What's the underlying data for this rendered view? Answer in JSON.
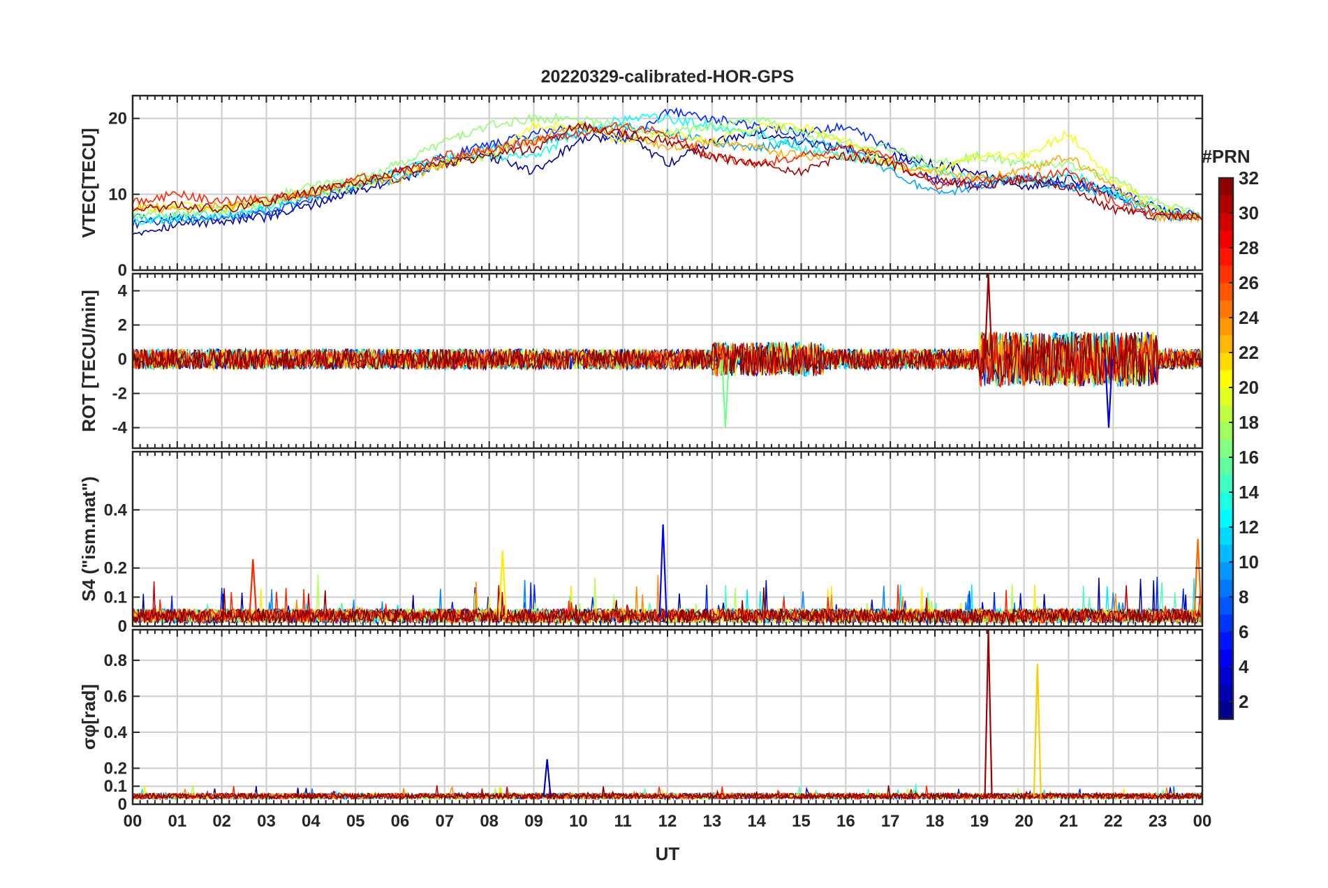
{
  "chart_data": {
    "type": "line",
    "title": "20220329-calibrated-HOR-GPS",
    "xlabel": "UT",
    "x_ticks": [
      "00",
      "01",
      "02",
      "03",
      "04",
      "05",
      "06",
      "07",
      "08",
      "09",
      "10",
      "11",
      "12",
      "13",
      "14",
      "15",
      "16",
      "17",
      "18",
      "19",
      "20",
      "21",
      "22",
      "23",
      "00"
    ],
    "xlim_hours": [
      0,
      24
    ],
    "colorbar": {
      "title": "#PRN",
      "range": [
        1,
        32
      ],
      "ticks": [
        2,
        4,
        6,
        8,
        10,
        12,
        14,
        16,
        18,
        20,
        22,
        24,
        26,
        28,
        30,
        32
      ],
      "colormap": "jet"
    },
    "panels": [
      {
        "name": "vtec",
        "ylabel": "VTEC[TECU]",
        "ylim": [
          0,
          23
        ],
        "yticks": [
          0,
          10,
          20
        ],
        "ytick_labels": [
          "0",
          "10",
          "20"
        ],
        "series": [
          {
            "prn": 2,
            "x": [
              0,
              1,
              2,
              3,
              4,
              5,
              6,
              7,
              8,
              9,
              10,
              11,
              12,
              13,
              14,
              15,
              16,
              17,
              18,
              19,
              20,
              21,
              22,
              23,
              24
            ],
            "y": [
              5,
              6,
              6.5,
              7,
              8.5,
              10.5,
              12,
              14,
              15,
              13,
              17,
              18,
              14,
              17,
              18,
              17,
              16,
              15,
              14,
              13,
              11,
              12,
              10,
              8,
              7
            ]
          },
          {
            "prn": 6,
            "x": [
              0,
              1,
              2,
              3,
              4,
              5,
              6,
              7,
              8,
              9,
              10,
              11,
              12,
              13,
              14,
              15,
              16,
              17,
              18,
              19,
              20,
              21,
              22,
              23,
              24
            ],
            "y": [
              6,
              7,
              7,
              7.5,
              9,
              11,
              13,
              15,
              16.5,
              18,
              19,
              17,
              21,
              20,
              19,
              18,
              19,
              16,
              12,
              11,
              12,
              11,
              11,
              8,
              7
            ]
          },
          {
            "prn": 10,
            "x": [
              0,
              1,
              2,
              3,
              4,
              5,
              6,
              7,
              8,
              9,
              10,
              11,
              12,
              13,
              14,
              15,
              16,
              17,
              18,
              19,
              20,
              21,
              22,
              23,
              24
            ],
            "y": [
              7,
              6.5,
              7,
              8,
              9.5,
              11,
              12,
              14,
              16,
              17,
              18,
              19,
              18,
              17,
              16,
              17,
              16,
              13,
              10,
              11,
              12,
              11,
              10,
              7,
              7
            ]
          },
          {
            "prn": 13,
            "x": [
              0,
              1,
              2,
              3,
              4,
              5,
              6,
              7,
              8,
              9,
              10,
              11,
              12,
              13,
              14,
              15,
              16,
              17,
              18,
              19,
              20,
              21,
              22,
              23,
              24
            ],
            "y": [
              6.5,
              7,
              7.5,
              8.5,
              10,
              11.5,
              13,
              15,
              15,
              15,
              18,
              20,
              20,
              19,
              18,
              16,
              15,
              14,
              13,
              12,
              12,
              13,
              10,
              8,
              7
            ]
          },
          {
            "prn": 17,
            "x": [
              0,
              1,
              2,
              3,
              4,
              5,
              6,
              7,
              8,
              9,
              10,
              11,
              12,
              13,
              14,
              15,
              16,
              17,
              18,
              19,
              20,
              21,
              22,
              23,
              24
            ],
            "y": [
              7,
              7.5,
              8,
              9.5,
              11,
              12,
              14,
              17,
              19,
              20,
              20,
              19,
              18,
              19,
              20,
              18,
              17,
              16,
              14,
              15,
              14,
              14,
              12,
              9,
              7
            ]
          },
          {
            "prn": 20,
            "x": [
              0,
              1,
              2,
              3,
              4,
              5,
              6,
              7,
              8,
              9,
              10,
              11,
              12,
              13,
              14,
              15,
              16,
              17,
              18,
              19,
              20,
              21,
              22,
              23,
              24
            ],
            "y": [
              8,
              8.5,
              8,
              9,
              10,
              11,
              13,
              14,
              15,
              19,
              19,
              17,
              18,
              17,
              19,
              19,
              17,
              14,
              13,
              15,
              15,
              18,
              12,
              8,
              7
            ]
          },
          {
            "prn": 23,
            "x": [
              0,
              1,
              2,
              3,
              4,
              5,
              6,
              7,
              8,
              9,
              10,
              11,
              12,
              13,
              14,
              15,
              16,
              17,
              18,
              19,
              20,
              21,
              22,
              23,
              24
            ],
            "y": [
              8.5,
              8,
              8.5,
              9,
              10.5,
              11.5,
              12,
              14,
              16,
              17,
              19,
              18,
              16,
              17,
              16,
              15,
              15,
              14,
              13,
              12,
              13,
              15,
              11,
              7,
              7
            ]
          },
          {
            "prn": 27,
            "x": [
              0,
              1,
              2,
              3,
              4,
              5,
              6,
              7,
              8,
              9,
              10,
              11,
              12,
              13,
              14,
              15,
              16,
              17,
              18,
              19,
              20,
              21,
              22,
              23,
              24
            ],
            "y": [
              9,
              10,
              9,
              9.5,
              10,
              12,
              13,
              15,
              16,
              17,
              18,
              19,
              18,
              15,
              14,
              15,
              16,
              15,
              11,
              12,
              12,
              13,
              9,
              7,
              7
            ]
          },
          {
            "prn": 31,
            "x": [
              0,
              1,
              2,
              3,
              4,
              5,
              6,
              7,
              8,
              9,
              10,
              11,
              12,
              13,
              14,
              15,
              16,
              17,
              18,
              19,
              20,
              21,
              22,
              23,
              24
            ],
            "y": [
              8,
              8.5,
              8,
              9,
              10.5,
              11.5,
              13,
              14,
              15,
              16,
              19,
              18,
              17,
              15,
              14,
              13,
              15,
              14,
              12,
              11,
              12,
              11,
              8,
              7,
              7
            ]
          }
        ]
      },
      {
        "name": "rot",
        "ylabel": "ROT [TECU/min]",
        "ylim": [
          -5.2,
          5
        ],
        "yticks": [
          -4,
          -2,
          0,
          2,
          4
        ],
        "ytick_labels": [
          "-4",
          "-2",
          "0",
          "2",
          "4"
        ],
        "notable_peaks": [
          {
            "x": 19.2,
            "y": 5,
            "prn": 31
          },
          {
            "x": 13.3,
            "y": -4,
            "prn": 16
          },
          {
            "x": 21.9,
            "y": -4,
            "prn": 4
          }
        ]
      },
      {
        "name": "s4",
        "ylabel": "S4 (\"ism.mat\")",
        "ylim": [
          0,
          0.6
        ],
        "yticks": [
          0,
          0.1,
          0.2,
          0.4
        ],
        "ytick_labels": [
          "0",
          "0.1",
          "0.2",
          "0.4"
        ],
        "notable_peaks": [
          {
            "x": 11.9,
            "y": 0.35,
            "prn": 5
          },
          {
            "x": 23.9,
            "y": 0.3,
            "prn": 25
          },
          {
            "x": 2.7,
            "y": 0.23,
            "prn": 27
          },
          {
            "x": 8.3,
            "y": 0.26,
            "prn": 21
          }
        ]
      },
      {
        "name": "sigma_phi",
        "ylabel": "σφ[rad]",
        "ylim": [
          0,
          0.97
        ],
        "yticks": [
          0,
          0.1,
          0.2,
          0.4,
          0.6,
          0.8
        ],
        "ytick_labels": [
          "0",
          "0.1",
          "0.2",
          "0.4",
          "0.6",
          "0.8"
        ],
        "notable_peaks": [
          {
            "x": 19.2,
            "y": 0.97,
            "prn": 31
          },
          {
            "x": 20.3,
            "y": 0.78,
            "prn": 22
          },
          {
            "x": 9.3,
            "y": 0.25,
            "prn": 3
          }
        ]
      }
    ]
  }
}
